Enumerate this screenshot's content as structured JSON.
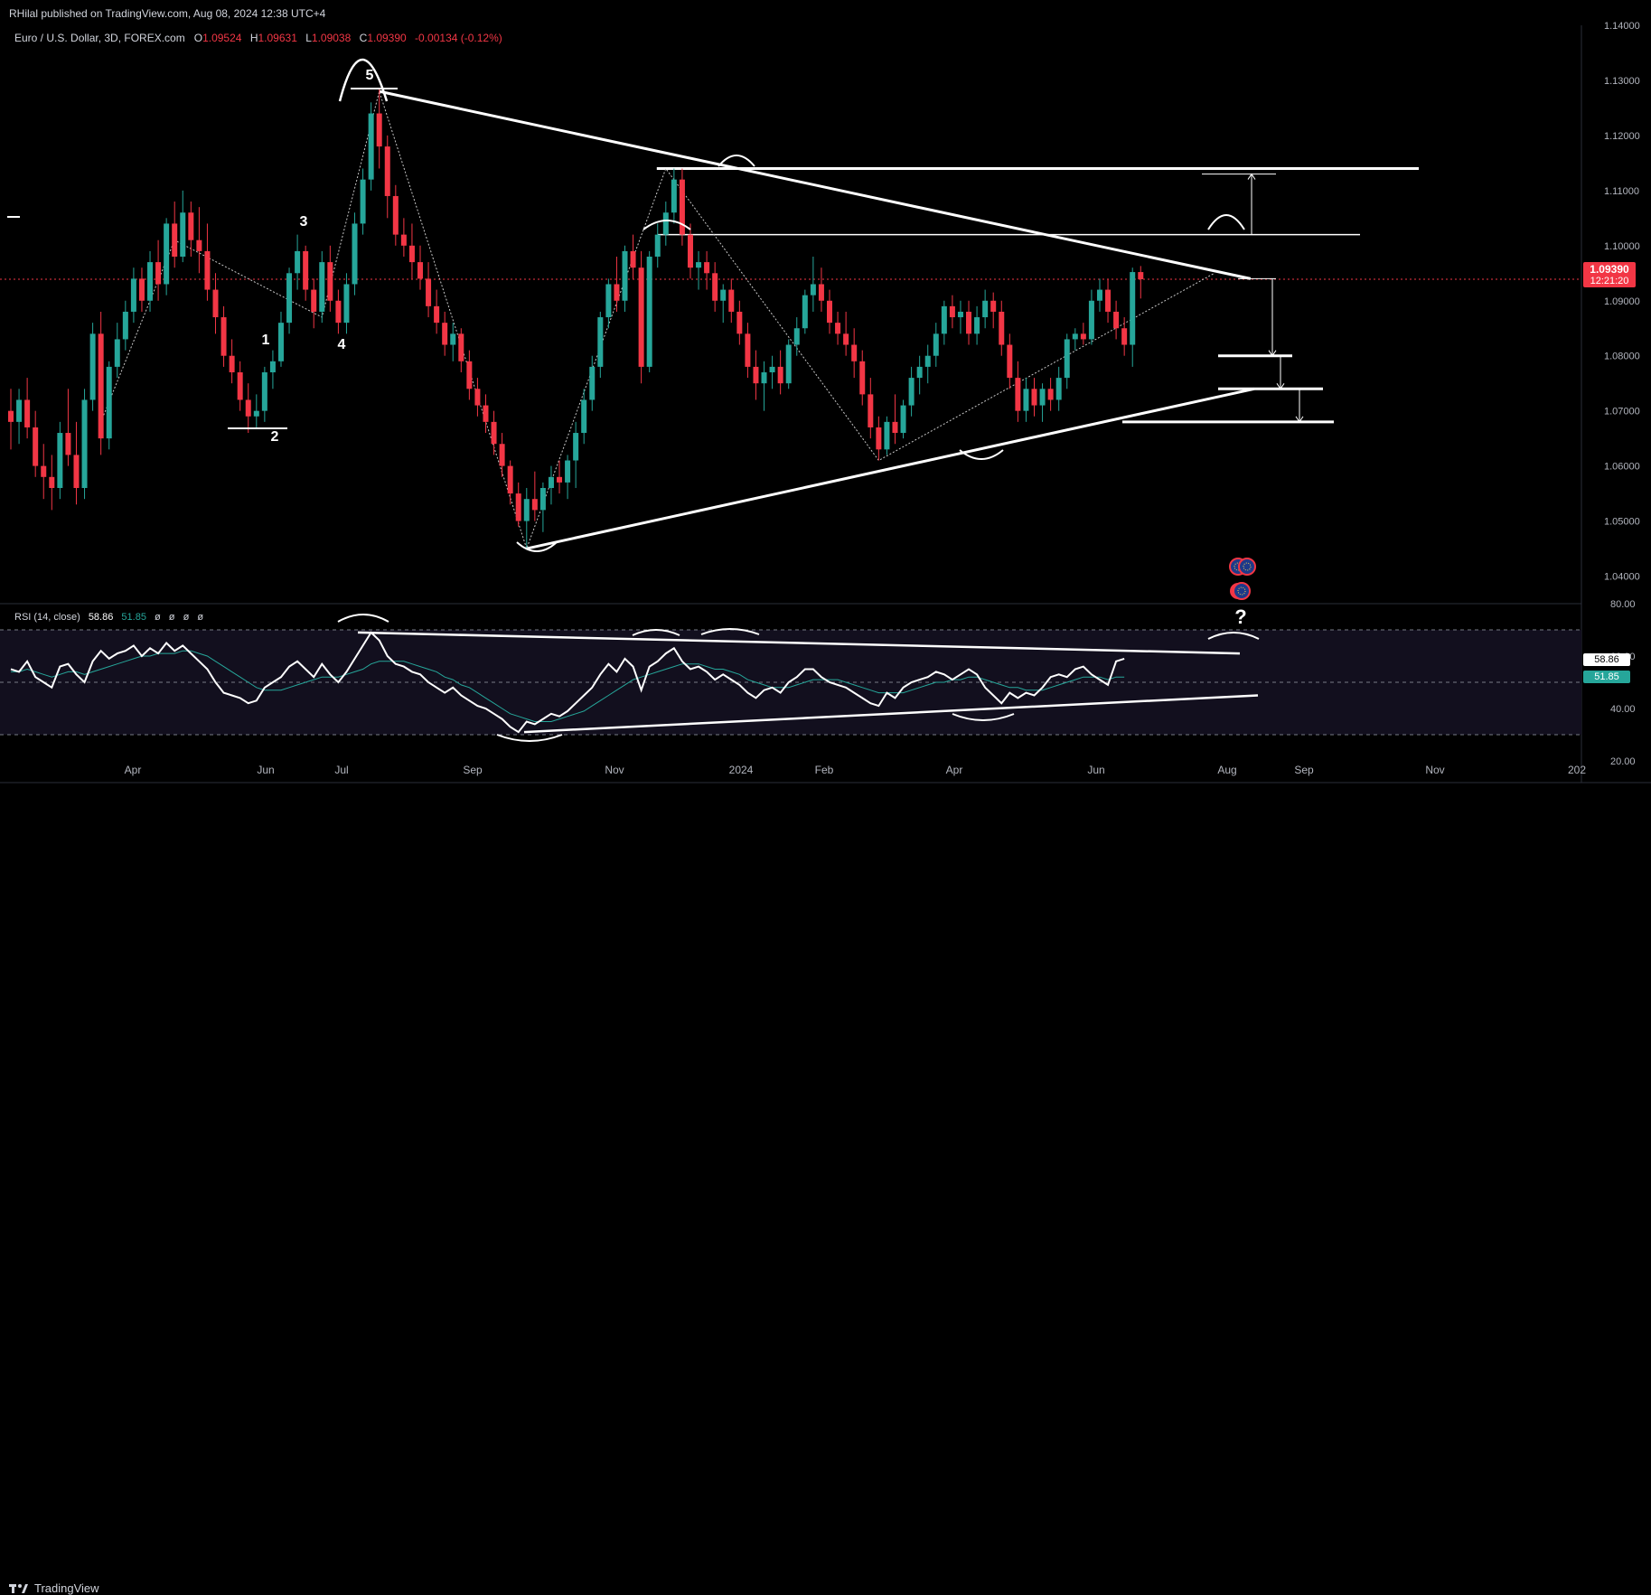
{
  "header": {
    "publisher": "RHilal published on TradingView.com, Aug 08, 2024 12:38 UTC+4"
  },
  "legend": {
    "symbol": "Euro / U.S. Dollar, 3D, FOREX.com",
    "open_label": "O",
    "open": "1.09524",
    "high_label": "H",
    "high": "1.09631",
    "low_label": "L",
    "low": "1.09038",
    "close_label": "C",
    "close": "1.09390",
    "change": "-0.00134 (-0.12%)"
  },
  "price_tag": {
    "value": "1.09390",
    "countdown": "12:21:20",
    "color": "#f23645"
  },
  "rsi": {
    "title": "RSI (14, close)",
    "value": "58.86",
    "ma_value": "51.85",
    "placeholders": [
      "ø",
      "ø",
      "ø",
      "ø"
    ],
    "value_color": "#ffffff",
    "ma_color": "#26a69a"
  },
  "annotations": {
    "wave_labels": [
      "1",
      "2",
      "3",
      "4",
      "5"
    ],
    "question_mark": "?"
  },
  "footer": {
    "brand": "TradingView"
  },
  "colors": {
    "up": "#26a69a",
    "down": "#f23645",
    "drawing": "#ffffff",
    "background": "#000000"
  },
  "chart_data": [
    {
      "type": "candlestick",
      "symbol": "EURUSD",
      "interval": "3D",
      "y_axis": {
        "ticks": [
          "1.04000",
          "1.05000",
          "1.06000",
          "1.07000",
          "1.08000",
          "1.09000",
          "1.10000",
          "1.11000",
          "1.12000",
          "1.13000",
          "1.14000"
        ],
        "ylim": [
          1.035,
          1.14
        ],
        "position": "right"
      },
      "x_axis": {
        "ticks": [
          "Apr",
          "Jun",
          "Jul",
          "Sep",
          "Nov",
          "2024",
          "Feb",
          "Apr",
          "Jun",
          "Aug",
          "Sep",
          "Nov",
          "202"
        ]
      },
      "last_price": 1.0939,
      "candles": [
        [
          1.07,
          1.074,
          1.063,
          1.068
        ],
        [
          1.068,
          1.074,
          1.064,
          1.072
        ],
        [
          1.072,
          1.076,
          1.065,
          1.067
        ],
        [
          1.067,
          1.07,
          1.058,
          1.06
        ],
        [
          1.06,
          1.064,
          1.054,
          1.058
        ],
        [
          1.058,
          1.062,
          1.052,
          1.056
        ],
        [
          1.056,
          1.068,
          1.054,
          1.066
        ],
        [
          1.066,
          1.074,
          1.06,
          1.062
        ],
        [
          1.062,
          1.068,
          1.053,
          1.056
        ],
        [
          1.056,
          1.074,
          1.054,
          1.072
        ],
        [
          1.072,
          1.086,
          1.07,
          1.084
        ],
        [
          1.084,
          1.088,
          1.062,
          1.065
        ],
        [
          1.065,
          1.079,
          1.063,
          1.078
        ],
        [
          1.078,
          1.086,
          1.076,
          1.083
        ],
        [
          1.083,
          1.09,
          1.081,
          1.088
        ],
        [
          1.088,
          1.096,
          1.086,
          1.094
        ],
        [
          1.094,
          1.096,
          1.088,
          1.09
        ],
        [
          1.09,
          1.099,
          1.088,
          1.097
        ],
        [
          1.097,
          1.101,
          1.09,
          1.093
        ],
        [
          1.093,
          1.105,
          1.091,
          1.104
        ],
        [
          1.104,
          1.108,
          1.096,
          1.098
        ],
        [
          1.098,
          1.11,
          1.097,
          1.106
        ],
        [
          1.106,
          1.108,
          1.098,
          1.101
        ],
        [
          1.101,
          1.107,
          1.095,
          1.099
        ],
        [
          1.099,
          1.104,
          1.09,
          1.092
        ],
        [
          1.092,
          1.095,
          1.084,
          1.087
        ],
        [
          1.087,
          1.089,
          1.078,
          1.08
        ],
        [
          1.08,
          1.083,
          1.075,
          1.077
        ],
        [
          1.077,
          1.079,
          1.07,
          1.072
        ],
        [
          1.072,
          1.075,
          1.066,
          1.069
        ],
        [
          1.069,
          1.073,
          1.067,
          1.07
        ],
        [
          1.07,
          1.078,
          1.068,
          1.077
        ],
        [
          1.077,
          1.081,
          1.074,
          1.079
        ],
        [
          1.079,
          1.088,
          1.078,
          1.086
        ],
        [
          1.086,
          1.096,
          1.084,
          1.095
        ],
        [
          1.095,
          1.102,
          1.092,
          1.099
        ],
        [
          1.099,
          1.1,
          1.09,
          1.092
        ],
        [
          1.092,
          1.094,
          1.085,
          1.088
        ],
        [
          1.088,
          1.099,
          1.086,
          1.097
        ],
        [
          1.097,
          1.1,
          1.088,
          1.09
        ],
        [
          1.09,
          1.092,
          1.084,
          1.086
        ],
        [
          1.086,
          1.095,
          1.084,
          1.093
        ],
        [
          1.093,
          1.106,
          1.091,
          1.104
        ],
        [
          1.104,
          1.114,
          1.102,
          1.112
        ],
        [
          1.112,
          1.126,
          1.11,
          1.124
        ],
        [
          1.124,
          1.1285,
          1.114,
          1.118
        ],
        [
          1.118,
          1.12,
          1.105,
          1.109
        ],
        [
          1.109,
          1.111,
          1.1,
          1.102
        ],
        [
          1.102,
          1.105,
          1.098,
          1.1
        ],
        [
          1.1,
          1.104,
          1.094,
          1.097
        ],
        [
          1.097,
          1.1,
          1.092,
          1.094
        ],
        [
          1.094,
          1.097,
          1.087,
          1.089
        ],
        [
          1.089,
          1.092,
          1.084,
          1.086
        ],
        [
          1.086,
          1.088,
          1.08,
          1.082
        ],
        [
          1.082,
          1.086,
          1.079,
          1.084
        ],
        [
          1.084,
          1.085,
          1.077,
          1.079
        ],
        [
          1.079,
          1.081,
          1.072,
          1.074
        ],
        [
          1.074,
          1.076,
          1.069,
          1.071
        ],
        [
          1.071,
          1.073,
          1.066,
          1.068
        ],
        [
          1.068,
          1.07,
          1.062,
          1.064
        ],
        [
          1.064,
          1.066,
          1.058,
          1.06
        ],
        [
          1.06,
          1.061,
          1.053,
          1.055
        ],
        [
          1.055,
          1.057,
          1.049,
          1.05
        ],
        [
          1.05,
          1.056,
          1.045,
          1.054
        ],
        [
          1.054,
          1.059,
          1.05,
          1.052
        ],
        [
          1.052,
          1.057,
          1.048,
          1.056
        ],
        [
          1.056,
          1.06,
          1.053,
          1.058
        ],
        [
          1.058,
          1.061,
          1.055,
          1.057
        ],
        [
          1.057,
          1.062,
          1.054,
          1.061
        ],
        [
          1.061,
          1.068,
          1.056,
          1.066
        ],
        [
          1.066,
          1.074,
          1.064,
          1.072
        ],
        [
          1.072,
          1.08,
          1.07,
          1.078
        ],
        [
          1.078,
          1.088,
          1.076,
          1.087
        ],
        [
          1.087,
          1.094,
          1.085,
          1.093
        ],
        [
          1.093,
          1.098,
          1.088,
          1.09
        ],
        [
          1.09,
          1.1,
          1.088,
          1.099
        ],
        [
          1.099,
          1.102,
          1.094,
          1.096
        ],
        [
          1.096,
          1.099,
          1.075,
          1.078
        ],
        [
          1.078,
          1.099,
          1.077,
          1.098
        ],
        [
          1.098,
          1.104,
          1.096,
          1.102
        ],
        [
          1.102,
          1.108,
          1.1,
          1.106
        ],
        [
          1.106,
          1.114,
          1.104,
          1.112
        ],
        [
          1.112,
          1.114,
          1.1,
          1.102
        ],
        [
          1.102,
          1.104,
          1.094,
          1.096
        ],
        [
          1.096,
          1.099,
          1.092,
          1.097
        ],
        [
          1.097,
          1.099,
          1.092,
          1.095
        ],
        [
          1.095,
          1.097,
          1.088,
          1.09
        ],
        [
          1.09,
          1.093,
          1.086,
          1.092
        ],
        [
          1.092,
          1.094,
          1.086,
          1.088
        ],
        [
          1.088,
          1.09,
          1.082,
          1.084
        ],
        [
          1.084,
          1.086,
          1.076,
          1.078
        ],
        [
          1.078,
          1.081,
          1.072,
          1.075
        ],
        [
          1.075,
          1.079,
          1.07,
          1.077
        ],
        [
          1.077,
          1.08,
          1.074,
          1.078
        ],
        [
          1.078,
          1.081,
          1.073,
          1.075
        ],
        [
          1.075,
          1.083,
          1.074,
          1.082
        ],
        [
          1.082,
          1.087,
          1.08,
          1.085
        ],
        [
          1.085,
          1.092,
          1.084,
          1.091
        ],
        [
          1.091,
          1.098,
          1.088,
          1.093
        ],
        [
          1.093,
          1.096,
          1.088,
          1.09
        ],
        [
          1.09,
          1.092,
          1.084,
          1.086
        ],
        [
          1.086,
          1.088,
          1.082,
          1.084
        ],
        [
          1.084,
          1.088,
          1.08,
          1.082
        ],
        [
          1.082,
          1.085,
          1.076,
          1.079
        ],
        [
          1.079,
          1.081,
          1.071,
          1.073
        ],
        [
          1.073,
          1.076,
          1.065,
          1.067
        ],
        [
          1.067,
          1.069,
          1.061,
          1.063
        ],
        [
          1.063,
          1.069,
          1.062,
          1.068
        ],
        [
          1.068,
          1.073,
          1.064,
          1.066
        ],
        [
          1.066,
          1.072,
          1.065,
          1.071
        ],
        [
          1.071,
          1.078,
          1.069,
          1.076
        ],
        [
          1.076,
          1.08,
          1.073,
          1.078
        ],
        [
          1.078,
          1.082,
          1.075,
          1.08
        ],
        [
          1.08,
          1.086,
          1.078,
          1.084
        ],
        [
          1.084,
          1.09,
          1.082,
          1.089
        ],
        [
          1.089,
          1.091,
          1.085,
          1.087
        ],
        [
          1.087,
          1.09,
          1.084,
          1.088
        ],
        [
          1.088,
          1.09,
          1.082,
          1.084
        ],
        [
          1.084,
          1.089,
          1.082,
          1.087
        ],
        [
          1.087,
          1.092,
          1.085,
          1.09
        ],
        [
          1.09,
          1.0915,
          1.085,
          1.088
        ],
        [
          1.088,
          1.09,
          1.08,
          1.082
        ],
        [
          1.082,
          1.084,
          1.074,
          1.076
        ],
        [
          1.076,
          1.079,
          1.068,
          1.07
        ],
        [
          1.07,
          1.076,
          1.068,
          1.074
        ],
        [
          1.074,
          1.076,
          1.069,
          1.071
        ],
        [
          1.071,
          1.075,
          1.068,
          1.074
        ],
        [
          1.074,
          1.076,
          1.07,
          1.072
        ],
        [
          1.072,
          1.078,
          1.07,
          1.076
        ],
        [
          1.076,
          1.084,
          1.074,
          1.083
        ],
        [
          1.083,
          1.085,
          1.081,
          1.084
        ],
        [
          1.084,
          1.086,
          1.082,
          1.083
        ],
        [
          1.083,
          1.092,
          1.082,
          1.09
        ],
        [
          1.09,
          1.094,
          1.088,
          1.092
        ],
        [
          1.092,
          1.094,
          1.086,
          1.088
        ],
        [
          1.088,
          1.09,
          1.083,
          1.085
        ],
        [
          1.085,
          1.087,
          1.08,
          1.082
        ],
        [
          1.082,
          1.096,
          1.078,
          1.0952
        ],
        [
          1.0952,
          1.0963,
          1.0904,
          1.0939
        ]
      ],
      "drawings": {
        "triangle_upper": [
          [
            1.128,
            45
          ],
          [
            1.094,
            147
          ]
        ],
        "triangle_lower": [
          [
            1.045,
            63
          ],
          [
            1.074,
            149
          ]
        ],
        "horizontal_levels": [
          1.114,
          1.102,
          1.113,
          1.094,
          1.08,
          1.074,
          1.068
        ],
        "zigzag": [
          [
            1.068,
            11
          ],
          [
            1.101,
            20
          ],
          [
            1.087,
            38
          ],
          [
            1.128,
            45
          ],
          [
            1.045,
            63
          ],
          [
            1.114,
            80
          ],
          [
            1.061,
            106
          ],
          [
            1.095,
            147
          ]
        ]
      }
    },
    {
      "type": "line",
      "name": "RSI (14, close)",
      "y_axis": {
        "ticks": [
          "20.00",
          "40.00",
          "60.00",
          "80.00"
        ],
        "ylim": [
          20,
          80
        ],
        "bands": [
          30,
          70
        ],
        "midline": 50
      },
      "series": [
        {
          "name": "RSI",
          "values": [
            55,
            54,
            58,
            52,
            50,
            48,
            56,
            57,
            53,
            50,
            58,
            62,
            59,
            61,
            62,
            64,
            60,
            63,
            61,
            65,
            62,
            64,
            61,
            58,
            55,
            50,
            46,
            45,
            44,
            42,
            43,
            48,
            50,
            52,
            56,
            58,
            55,
            52,
            57,
            53,
            50,
            54,
            59,
            64,
            69,
            66,
            60,
            57,
            56,
            54,
            53,
            50,
            48,
            46,
            48,
            45,
            43,
            41,
            40,
            38,
            36,
            33,
            31,
            35,
            34,
            36,
            38,
            37,
            39,
            42,
            45,
            48,
            53,
            57,
            54,
            59,
            56,
            47,
            56,
            58,
            61,
            63,
            58,
            55,
            56,
            54,
            51,
            53,
            51,
            49,
            46,
            44,
            47,
            48,
            46,
            50,
            52,
            55,
            55,
            52,
            50,
            49,
            48,
            46,
            44,
            42,
            41,
            46,
            44,
            48,
            50,
            51,
            52,
            54,
            53,
            51,
            53,
            55,
            53,
            48,
            45,
            42,
            46,
            44,
            46,
            45,
            48,
            52,
            53,
            52,
            55,
            56,
            53,
            51,
            49,
            58,
            59
          ]
        },
        {
          "name": "RSI-based MA",
          "values": [
            54,
            54,
            55,
            54,
            53,
            52,
            53,
            54,
            54,
            53,
            54,
            55,
            56,
            57,
            58,
            59,
            60,
            60,
            61,
            61,
            61,
            62,
            62,
            61,
            60,
            58,
            56,
            54,
            52,
            50,
            48,
            47,
            47,
            47,
            48,
            49,
            50,
            51,
            52,
            52,
            52,
            53,
            54,
            55,
            57,
            58,
            58,
            58,
            58,
            57,
            56,
            55,
            54,
            52,
            51,
            49,
            48,
            46,
            44,
            42,
            40,
            38,
            37,
            36,
            35,
            35,
            35,
            36,
            37,
            38,
            39,
            41,
            43,
            45,
            47,
            49,
            51,
            52,
            53,
            54,
            55,
            56,
            57,
            57,
            57,
            56,
            55,
            55,
            54,
            53,
            51,
            50,
            49,
            48,
            48,
            48,
            49,
            50,
            51,
            51,
            51,
            51,
            50,
            49,
            48,
            47,
            46,
            46,
            46,
            46,
            47,
            48,
            49,
            50,
            50,
            51,
            51,
            52,
            52,
            51,
            50,
            49,
            48,
            48,
            47,
            47,
            47,
            48,
            49,
            50,
            51,
            52,
            52,
            52,
            51,
            52,
            52
          ]
        }
      ]
    }
  ]
}
